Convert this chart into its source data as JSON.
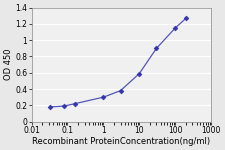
{
  "x": [
    0.032,
    0.08,
    0.16,
    1.0,
    3.0,
    10.0,
    30.0,
    100.0,
    200.0
  ],
  "y": [
    0.18,
    0.19,
    0.22,
    0.3,
    0.38,
    0.59,
    0.9,
    1.15,
    1.27
  ],
  "line_color": "#5555bb",
  "marker_color": "#3333aa",
  "marker": "D",
  "marker_size": 2.5,
  "line_width": 0.9,
  "xlim": [
    0.01,
    1000
  ],
  "ylim": [
    0,
    1.4
  ],
  "yticks": [
    0,
    0.2,
    0.4,
    0.6,
    0.8,
    1.0,
    1.2,
    1.4
  ],
  "xticks": [
    0.01,
    0.1,
    1,
    10,
    100,
    1000
  ],
  "xtick_labels": [
    "0.01",
    "0.1",
    "1",
    "10",
    "100",
    "1000"
  ],
  "xlabel": "Recombinant ProteinConcentration(ng/ml)",
  "ylabel": "OD 450",
  "xlabel_fontsize": 6.0,
  "ylabel_fontsize": 6.0,
  "tick_fontsize": 5.5,
  "figure_facecolor": "#e8e8e8",
  "axes_facecolor": "#f0f0f0",
  "grid_color": "#ffffff",
  "grid_linewidth": 0.7,
  "spine_color": "#888888"
}
